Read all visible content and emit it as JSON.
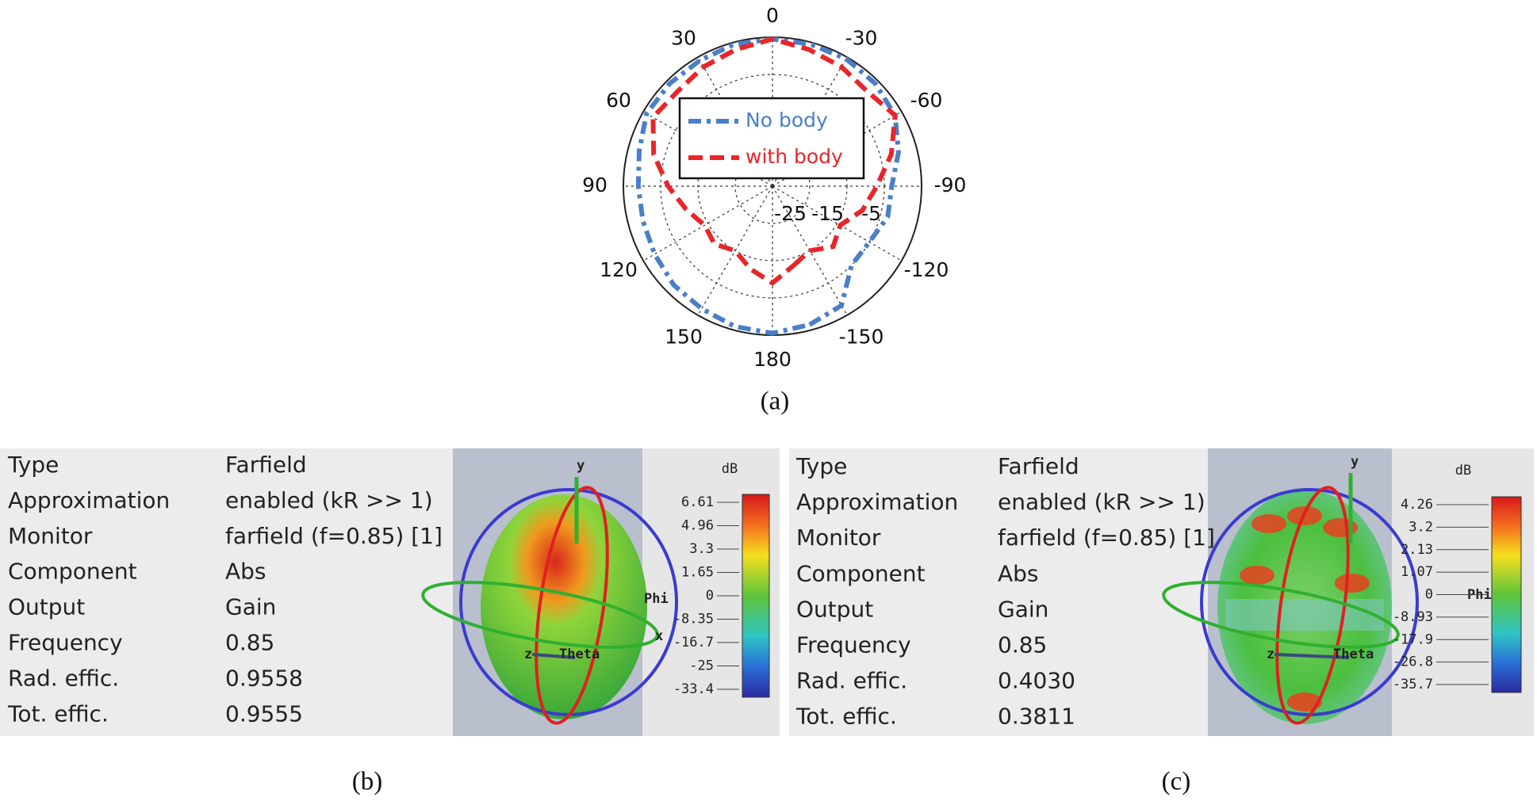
{
  "chart_data": {
    "type": "polar",
    "theta": [
      -165,
      -150,
      -135,
      -120,
      -105,
      -90,
      -75,
      -60,
      -45,
      -30,
      -15,
      0,
      15,
      30,
      45,
      60,
      75,
      90,
      105,
      120,
      135,
      150,
      165,
      180
    ],
    "thetaticks": [
      0,
      30,
      60,
      90,
      120,
      150,
      180,
      -150,
      -120,
      -90,
      -60,
      -30
    ],
    "rlim": [
      -35,
      5
    ],
    "rticks": [
      -25,
      -15,
      -5
    ],
    "grid": true,
    "series": [
      {
        "name": "No body",
        "color": "#4a7fc8",
        "values": [
          3.5,
          2,
          -5,
          -5,
          -3,
          -3,
          0,
          3,
          4,
          4.5,
          4.5,
          4.5,
          4.5,
          4,
          4,
          4,
          2,
          1,
          1,
          1.5,
          2.5,
          3,
          4,
          4.5
        ]
      },
      {
        "name": "with body",
        "color": "#e8262a",
        "values": [
          -13,
          -15,
          -12,
          -14,
          -10,
          -7,
          -2,
          3,
          1,
          2,
          3,
          4.5,
          3,
          2,
          1,
          2,
          -2,
          -7,
          -11,
          -14,
          -13,
          -15,
          -12,
          -9
        ]
      }
    ],
    "caption": "(a)"
  },
  "panels": [
    {
      "caption": "(b)",
      "properties": [
        {
          "key": "Type",
          "value": "Farfield"
        },
        {
          "key": "Approximation",
          "value": "enabled (kR >> 1)"
        },
        {
          "key": "Monitor",
          "value": "farfield (f=0.85) [1]"
        },
        {
          "key": "Component",
          "value": "Abs"
        },
        {
          "key": "Output",
          "value": "Gain"
        },
        {
          "key": "Frequency",
          "value": "0.85"
        },
        {
          "key": "Rad. effic.",
          "value": "0.9558"
        },
        {
          "key": "Tot. effic.",
          "value": "0.9555"
        }
      ],
      "colorbar": {
        "unit": "dB",
        "labels": [
          "6.61",
          "4.96",
          "3.3",
          "1.65",
          "0",
          "-8.35",
          "-16.7",
          "-25",
          "-33.4"
        ]
      },
      "axes": {
        "y": "y",
        "z": "z",
        "theta": "Theta",
        "phi": "Phi",
        "x": "x"
      }
    },
    {
      "caption": "(c)",
      "properties": [
        {
          "key": "Type",
          "value": "Farfield"
        },
        {
          "key": "Approximation",
          "value": "enabled (kR >> 1)"
        },
        {
          "key": "Monitor",
          "value": "farfield (f=0.85) [1]"
        },
        {
          "key": "Component",
          "value": "Abs"
        },
        {
          "key": "Output",
          "value": "Gain"
        },
        {
          "key": "Frequency",
          "value": "0.85"
        },
        {
          "key": "Rad. effic.",
          "value": "0.4030"
        },
        {
          "key": "Tot. effic.",
          "value": "0.3811"
        }
      ],
      "colorbar": {
        "unit": "dB",
        "labels": [
          "4.26",
          "3.2",
          "2.13",
          "1.07",
          "0",
          "-8.93",
          "-17.9",
          "-26.8",
          "-35.7"
        ]
      },
      "axes": {
        "y": "y",
        "z": "z",
        "theta": "Theta",
        "phi": "Phi"
      }
    }
  ]
}
